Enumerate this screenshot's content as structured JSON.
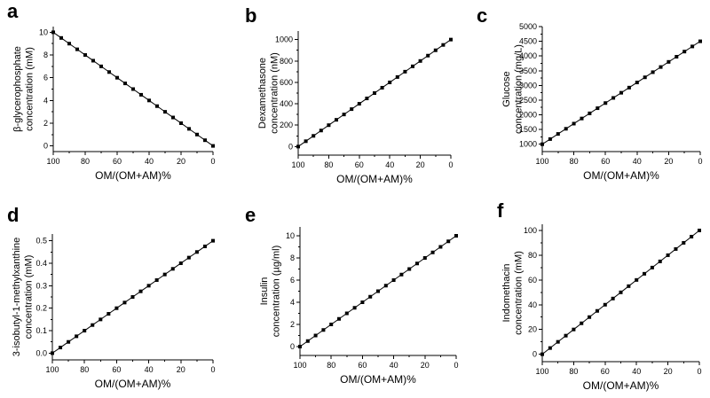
{
  "chart_data": [
    {
      "id": "a",
      "panel_label": "a",
      "type": "line",
      "xlabel": "OM/(OM+AM)%",
      "ylabel_lines": [
        "β-glycerophosphate",
        "concentration (mM)"
      ],
      "x": [
        100,
        95,
        90,
        85,
        80,
        75,
        70,
        65,
        60,
        55,
        50,
        45,
        40,
        35,
        30,
        25,
        20,
        15,
        10,
        5,
        0
      ],
      "series": [
        {
          "values": [
            10,
            9.5,
            9,
            8.5,
            8,
            7.5,
            7,
            6.5,
            6,
            5.5,
            5,
            4.5,
            4,
            3.5,
            3,
            2.5,
            2,
            1.5,
            1,
            0.5,
            0
          ]
        }
      ],
      "xlim": [
        100,
        0
      ],
      "ylim": [
        -0.5,
        10.5
      ],
      "xticks": [
        100,
        80,
        60,
        40,
        20,
        0
      ],
      "yticks": [
        0,
        2,
        4,
        6,
        8,
        10
      ],
      "xtick_labels": [
        "100",
        "80",
        "60",
        "40",
        "20",
        "0"
      ],
      "ytick_labels": [
        "0",
        "2",
        "4",
        "6",
        "8",
        "10"
      ],
      "marker": "square"
    },
    {
      "id": "b",
      "panel_label": "b",
      "type": "line",
      "xlabel": "OM/(OM+AM)%",
      "ylabel_lines": [
        "Dexamethasone",
        "concentration (nM)"
      ],
      "x": [
        100,
        95,
        90,
        85,
        80,
        75,
        70,
        65,
        60,
        55,
        50,
        45,
        40,
        35,
        30,
        25,
        20,
        15,
        10,
        5,
        0
      ],
      "series": [
        {
          "values": [
            0,
            50,
            100,
            150,
            200,
            250,
            300,
            350,
            400,
            450,
            500,
            550,
            600,
            650,
            700,
            750,
            800,
            850,
            900,
            950,
            1000
          ]
        }
      ],
      "xlim": [
        100,
        0
      ],
      "ylim": [
        -80,
        1080
      ],
      "xticks": [
        100,
        80,
        60,
        40,
        20,
        0
      ],
      "yticks": [
        0,
        200,
        400,
        600,
        800,
        1000
      ],
      "xtick_labels": [
        "100",
        "80",
        "60",
        "40",
        "20",
        "0"
      ],
      "ytick_labels": [
        "0",
        "200",
        "400",
        "600",
        "800",
        "1000"
      ],
      "marker": "square"
    },
    {
      "id": "c",
      "panel_label": "c",
      "type": "line",
      "xlabel": "OM/(OM+AM)%",
      "ylabel_lines": [
        "Glucose",
        "concentration (mg/L)"
      ],
      "x": [
        100,
        95,
        90,
        85,
        80,
        75,
        70,
        65,
        60,
        55,
        50,
        45,
        40,
        35,
        30,
        25,
        20,
        15,
        10,
        5,
        0
      ],
      "series": [
        {
          "values": [
            1000,
            1175,
            1350,
            1525,
            1700,
            1875,
            2050,
            2225,
            2400,
            2575,
            2750,
            2925,
            3100,
            3275,
            3450,
            3625,
            3800,
            3975,
            4150,
            4325,
            4500
          ]
        }
      ],
      "xlim": [
        100,
        0
      ],
      "ylim": [
        750,
        5000
      ],
      "xticks": [
        100,
        80,
        60,
        40,
        20,
        0
      ],
      "yticks": [
        1000,
        1500,
        2000,
        2500,
        3000,
        3500,
        4000,
        4500,
        5000
      ],
      "xtick_labels": [
        "100",
        "80",
        "60",
        "40",
        "20",
        "0"
      ],
      "ytick_labels": [
        "1000",
        "1500",
        "2000",
        "2500",
        "3000",
        "3500",
        "4000",
        "4500",
        "5000"
      ],
      "marker": "square"
    },
    {
      "id": "d",
      "panel_label": "d",
      "type": "line",
      "xlabel": "OM/(OM+AM)%",
      "ylabel_lines": [
        "3-isobutyl-1-methylxanthine",
        "concentration (mM)"
      ],
      "x": [
        100,
        95,
        90,
        85,
        80,
        75,
        70,
        65,
        60,
        55,
        50,
        45,
        40,
        35,
        30,
        25,
        20,
        15,
        10,
        5,
        0
      ],
      "series": [
        {
          "values": [
            0,
            0.025,
            0.05,
            0.075,
            0.1,
            0.125,
            0.15,
            0.175,
            0.2,
            0.225,
            0.25,
            0.275,
            0.3,
            0.325,
            0.35,
            0.375,
            0.4,
            0.425,
            0.45,
            0.475,
            0.5
          ]
        }
      ],
      "xlim": [
        100,
        0
      ],
      "ylim": [
        -0.03,
        0.53
      ],
      "xticks": [
        100,
        80,
        60,
        40,
        20,
        0
      ],
      "yticks": [
        0,
        0.1,
        0.2,
        0.3,
        0.4,
        0.5
      ],
      "xtick_labels": [
        "100",
        "80",
        "60",
        "40",
        "20",
        "0"
      ],
      "ytick_labels": [
        "0.0",
        "0.1",
        "0.2",
        "0.3",
        "0.4",
        "0.5"
      ],
      "marker": "square"
    },
    {
      "id": "e",
      "panel_label": "e",
      "type": "line",
      "xlabel": "OM/(OM+AM)%",
      "ylabel_lines": [
        "Insulin",
        "concentration (µg/ml)"
      ],
      "x": [
        100,
        95,
        90,
        85,
        80,
        75,
        70,
        65,
        60,
        55,
        50,
        45,
        40,
        35,
        30,
        25,
        20,
        15,
        10,
        5,
        0
      ],
      "series": [
        {
          "values": [
            0,
            0.5,
            1,
            1.5,
            2,
            2.5,
            3,
            3.5,
            4,
            4.5,
            5,
            5.5,
            6,
            6.5,
            7,
            7.5,
            8,
            8.5,
            9,
            9.5,
            10
          ]
        }
      ],
      "xlim": [
        100,
        0
      ],
      "ylim": [
        -0.8,
        10.8
      ],
      "xticks": [
        100,
        80,
        60,
        40,
        20,
        0
      ],
      "yticks": [
        0,
        2,
        4,
        6,
        8,
        10
      ],
      "xtick_labels": [
        "100",
        "80",
        "60",
        "40",
        "20",
        "0"
      ],
      "ytick_labels": [
        "0",
        "2",
        "4",
        "6",
        "8",
        "10"
      ],
      "marker": "square"
    },
    {
      "id": "f",
      "panel_label": "f",
      "type": "line",
      "xlabel": "OM/(OM+AM)%",
      "ylabel_lines": [
        "Indomethacin",
        "concentration (mM)"
      ],
      "x": [
        100,
        95,
        90,
        85,
        80,
        75,
        70,
        65,
        60,
        55,
        50,
        45,
        40,
        35,
        30,
        25,
        20,
        15,
        10,
        5,
        0
      ],
      "series": [
        {
          "values": [
            0,
            5,
            10,
            15,
            20,
            25,
            30,
            35,
            40,
            45,
            50,
            55,
            60,
            65,
            70,
            75,
            80,
            85,
            90,
            95,
            100
          ]
        }
      ],
      "xlim": [
        100,
        0
      ],
      "ylim": [
        -6,
        105
      ],
      "xticks": [
        100,
        80,
        60,
        40,
        20,
        0
      ],
      "yticks": [
        0,
        20,
        40,
        60,
        80,
        100
      ],
      "xtick_labels": [
        "100",
        "80",
        "60",
        "40",
        "20",
        "0"
      ],
      "ytick_labels": [
        "0",
        "20",
        "40",
        "60",
        "80",
        "100"
      ],
      "marker": "square"
    }
  ]
}
